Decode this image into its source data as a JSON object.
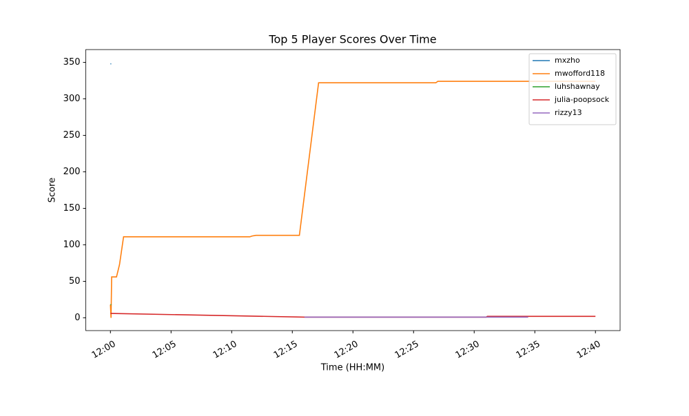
{
  "chart_data": {
    "type": "line",
    "title": "Top 5 Player Scores Over Time",
    "x_label": "Time (HH:MM)",
    "y_label": "Score",
    "xlim": [
      "11:57:58",
      "12:42:02"
    ],
    "xticks": [
      "12:00",
      "12:05",
      "12:10",
      "12:15",
      "12:20",
      "12:25",
      "12:30",
      "12:35",
      "12:40"
    ],
    "ylim": [
      -17.5,
      367.5
    ],
    "yticks": [
      0,
      50,
      100,
      150,
      200,
      250,
      300,
      350
    ],
    "legend": "upper right",
    "series": [
      {
        "name": "mxzho",
        "color": "#1f77b4",
        "x": [
          "12:00:00",
          "12:00:04"
        ],
        "values": [
          348,
          348
        ]
      },
      {
        "name": "mwofford118",
        "color": "#ff7f0e",
        "x": [
          "12:00:00",
          "12:00:03",
          "12:00:06",
          "12:00:30",
          "12:00:45",
          "12:01:05",
          "12:11:30",
          "12:11:40",
          "12:12:00",
          "12:15:35",
          "12:17:10",
          "12:26:50",
          "12:27:00",
          "12:40:00"
        ],
        "values": [
          18,
          0,
          56,
          56,
          73,
          111,
          111,
          112,
          113,
          113,
          322,
          322,
          324,
          324
        ]
      },
      {
        "name": "luhshawnay",
        "color": "#2ca02c",
        "x": [
          "12:00:00",
          "12:00:04"
        ],
        "values": [
          18,
          18
        ]
      },
      {
        "name": "julia-poopsock",
        "color": "#d62728",
        "x": [
          "12:00:00",
          "12:16:00",
          "12:31:00",
          "12:31:05",
          "12:40:00"
        ],
        "values": [
          6,
          1,
          1,
          2,
          2
        ]
      },
      {
        "name": "rizzy13",
        "color": "#9467bd",
        "x": [
          "12:16:00",
          "12:34:27"
        ],
        "values": [
          1,
          1
        ]
      }
    ]
  }
}
